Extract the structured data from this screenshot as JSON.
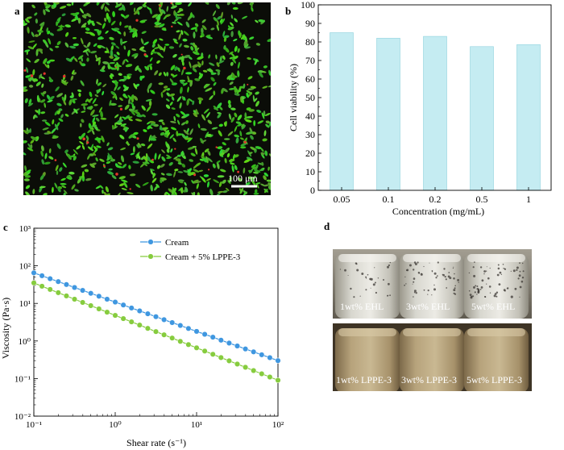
{
  "panels": {
    "a": {
      "letter": "a",
      "scale_bar_label": "100 μm",
      "colors": {
        "background": "#0b0d08",
        "live_cells": "#49c53a",
        "dead_cells": "#e2352b"
      }
    },
    "b": {
      "letter": "b"
    },
    "c": {
      "letter": "c"
    },
    "d": {
      "letter": "d",
      "top_row": [
        "1wt% EHL",
        "3wt% EHL",
        "5wt% EHL"
      ],
      "bottom_row": [
        "1wt% LPPE-3",
        "3wt% LPPE-3",
        "5wt% LPPE-3"
      ]
    }
  },
  "chart_data": [
    {
      "type": "bar",
      "panel": "b",
      "categories": [
        "0.05",
        "0.1",
        "0.2",
        "0.5",
        "1"
      ],
      "values": [
        85,
        82,
        83,
        77.5,
        78.5
      ],
      "xlabel": "Concentration (mg/mL)",
      "ylabel": "Cell viability (%)",
      "ylim": [
        0,
        100
      ],
      "yticks": [
        "0",
        "10",
        "20",
        "30",
        "40",
        "50",
        "60",
        "70",
        "80",
        "90",
        "100"
      ],
      "bar_color": "#c5ecf2",
      "bar_edge": "#8fd2de"
    },
    {
      "type": "line",
      "panel": "c",
      "xscale": "log",
      "yscale": "log",
      "xlim": [
        0.1,
        100
      ],
      "ylim": [
        0.01,
        1000
      ],
      "xlabel": "Shear rate (s⁻¹)",
      "ylabel": "Viscosity (Pa·s)",
      "xticks": [
        "10⁻¹",
        "10⁰",
        "10¹",
        "10²"
      ],
      "yticks": [
        "10⁻²",
        "10⁻¹",
        "10⁰",
        "10¹",
        "10²",
        "10³"
      ],
      "legend_position": "top-right",
      "series": [
        {
          "name": "Cream",
          "color": "#3f97e0",
          "points": [
            [
              0.1,
              65
            ],
            [
              100,
              0.3
            ]
          ]
        },
        {
          "name": "Cream + 5% LPPE-3",
          "color": "#86cc3e",
          "points": [
            [
              0.1,
              35
            ],
            [
              100,
              0.09
            ]
          ]
        }
      ]
    }
  ]
}
